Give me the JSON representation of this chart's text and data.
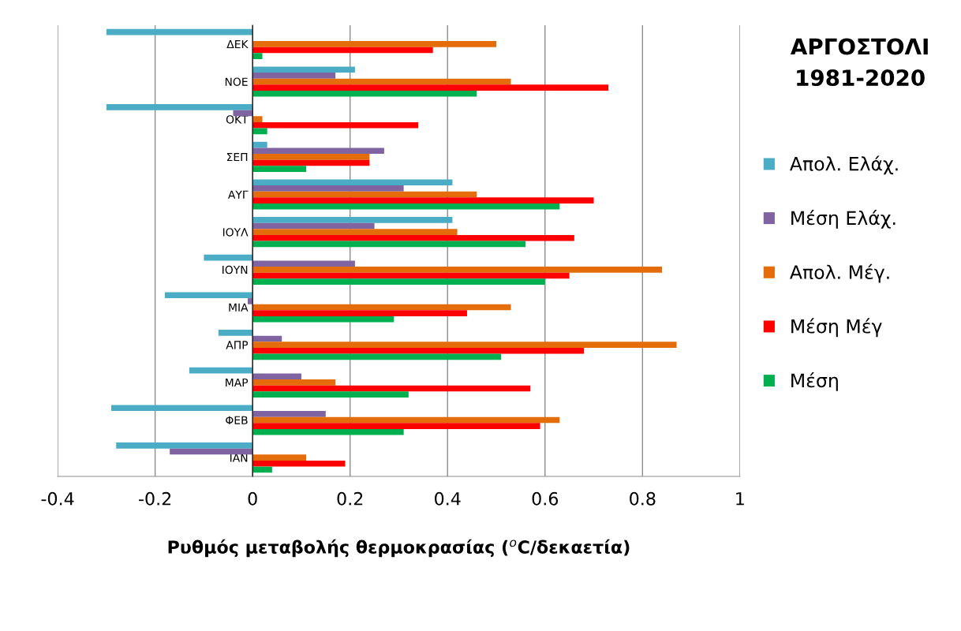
{
  "chart_data": {
    "type": "bar",
    "orientation": "horizontal",
    "title": "ΑΡΓΟΣΤΟΛΙ\n1981-2020",
    "xlabel": "Ρυθμός μεταβολής θερμοκρασίας ($^{o}$C/δεκαετία)",
    "categories": [
      "ΔΕΚ",
      "ΝΟΕ",
      "ΟΚΤ",
      "ΣΕΠ",
      "ΑΥΓ",
      "ΙΟΥΛ",
      "ΙΟΥΝ",
      "ΜΙΑ",
      "ΑΠΡ",
      "ΜΑΡ",
      "ΦΕΒ",
      "ΙΑΝ"
    ],
    "series": [
      {
        "name": "Απολ. Ελάχ.",
        "color": "#4bacc6",
        "values": [
          -0.3,
          0.21,
          -0.3,
          0.03,
          0.41,
          0.41,
          -0.1,
          -0.18,
          -0.07,
          -0.13,
          -0.29,
          -0.28
        ]
      },
      {
        "name": "Μέση Ελάχ.",
        "color": "#8064a2",
        "values": [
          0,
          0.17,
          -0.04,
          0.27,
          0.31,
          0.25,
          0.21,
          -0.01,
          0.06,
          0.1,
          0.15,
          -0.17
        ]
      },
      {
        "name": "Απολ. Μέγ.",
        "color": "#e46c0a",
        "values": [
          0.5,
          0.53,
          0.02,
          0.24,
          0.46,
          0.42,
          0.84,
          0.53,
          0.87,
          0.17,
          0.63,
          0.11
        ]
      },
      {
        "name": "Μέση Μέγ",
        "color": "#ff0000",
        "values": [
          0.37,
          0.73,
          0.34,
          0.24,
          0.7,
          0.66,
          0.65,
          0.44,
          0.68,
          0.57,
          0.59,
          0.19
        ]
      },
      {
        "name": "Μέση",
        "color": "#00b050",
        "values": [
          0.02,
          0.46,
          0.03,
          0.11,
          0.63,
          0.56,
          0.6,
          0.29,
          0.51,
          0.32,
          0.31,
          0.04
        ]
      }
    ],
    "xlim": [
      -0.4,
      1
    ],
    "xticks": [
      -0.4,
      -0.2,
      0,
      0.2,
      0.4,
      0.6,
      0.8,
      1
    ],
    "grid": "x",
    "legend": "right"
  }
}
